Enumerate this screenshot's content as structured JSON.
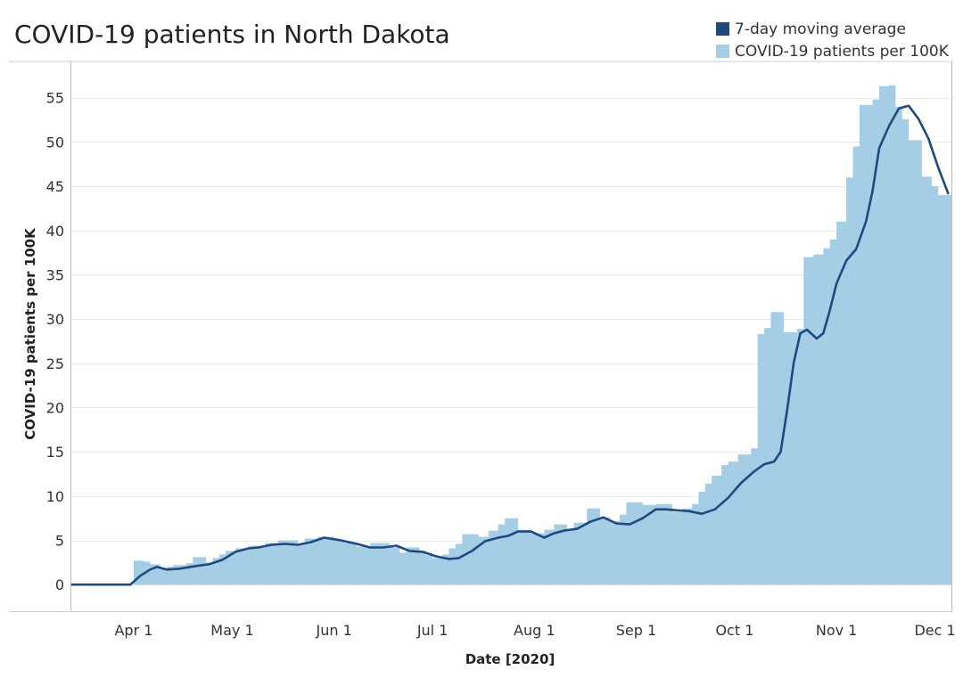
{
  "chart_data": {
    "type": "area",
    "title": "COVID-19 patients in North Dakota",
    "xlabel": "Date [2020]",
    "ylabel": "COVID-19 patients per 100K",
    "x_range": [
      "2020-03-13",
      "2020-12-06"
    ],
    "ylim": [
      -3,
      59
    ],
    "yticks": [
      0,
      5,
      10,
      15,
      20,
      25,
      30,
      35,
      40,
      45,
      50,
      55
    ],
    "xticks": [
      {
        "label": "Apr 1",
        "date": "2020-04-01"
      },
      {
        "label": "May 1",
        "date": "2020-05-01"
      },
      {
        "label": "Jun 1",
        "date": "2020-06-01"
      },
      {
        "label": "Jul 1",
        "date": "2020-07-01"
      },
      {
        "label": "Aug 1",
        "date": "2020-08-01"
      },
      {
        "label": "Sep 1",
        "date": "2020-09-01"
      },
      {
        "label": "Oct 1",
        "date": "2020-10-01"
      },
      {
        "label": "Nov 1",
        "date": "2020-11-01"
      },
      {
        "label": "Dec 1",
        "date": "2020-12-01"
      }
    ],
    "grid": true,
    "legend_position": "top-right",
    "series": [
      {
        "name": "COVID-19 patients per 100K",
        "style": "step-area",
        "color": "#a6cde6",
        "points": [
          [
            "2020-03-13",
            0
          ],
          [
            "2020-03-31",
            0
          ],
          [
            "2020-04-01",
            2.7
          ],
          [
            "2020-04-04",
            2.6
          ],
          [
            "2020-04-06",
            2.3
          ],
          [
            "2020-04-09",
            1.8
          ],
          [
            "2020-04-11",
            2.0
          ],
          [
            "2020-04-13",
            2.2
          ],
          [
            "2020-04-17",
            2.4
          ],
          [
            "2020-04-19",
            3.1
          ],
          [
            "2020-04-23",
            2.5
          ],
          [
            "2020-04-25",
            3.0
          ],
          [
            "2020-04-27",
            3.4
          ],
          [
            "2020-04-29",
            3.8
          ],
          [
            "2020-05-02",
            4.1
          ],
          [
            "2020-05-06",
            4.4
          ],
          [
            "2020-05-11",
            4.7
          ],
          [
            "2020-05-15",
            5.0
          ],
          [
            "2020-05-21",
            4.6
          ],
          [
            "2020-05-23",
            5.2
          ],
          [
            "2020-05-27",
            5.4
          ],
          [
            "2020-06-01",
            5.1
          ],
          [
            "2020-06-04",
            4.7
          ],
          [
            "2020-06-08",
            4.3
          ],
          [
            "2020-06-12",
            4.7
          ],
          [
            "2020-06-18",
            4.2
          ],
          [
            "2020-06-21",
            3.6
          ],
          [
            "2020-06-23",
            4.2
          ],
          [
            "2020-06-27",
            3.8
          ],
          [
            "2020-06-29",
            3.3
          ],
          [
            "2020-07-01",
            3.0
          ],
          [
            "2020-07-04",
            3.4
          ],
          [
            "2020-07-06",
            4.1
          ],
          [
            "2020-07-08",
            4.6
          ],
          [
            "2020-07-10",
            5.7
          ],
          [
            "2020-07-15",
            5.4
          ],
          [
            "2020-07-18",
            6.1
          ],
          [
            "2020-07-21",
            6.8
          ],
          [
            "2020-07-23",
            7.5
          ],
          [
            "2020-07-27",
            6.2
          ],
          [
            "2020-07-31",
            5.8
          ],
          [
            "2020-08-04",
            6.2
          ],
          [
            "2020-08-07",
            6.8
          ],
          [
            "2020-08-11",
            6.3
          ],
          [
            "2020-08-13",
            7.0
          ],
          [
            "2020-08-17",
            8.6
          ],
          [
            "2020-08-21",
            7.6
          ],
          [
            "2020-08-24",
            7.2
          ],
          [
            "2020-08-27",
            7.9
          ],
          [
            "2020-08-29",
            9.3
          ],
          [
            "2020-09-03",
            9.0
          ],
          [
            "2020-09-07",
            9.1
          ],
          [
            "2020-09-12",
            8.2
          ],
          [
            "2020-09-15",
            8.6
          ],
          [
            "2020-09-18",
            9.1
          ],
          [
            "2020-09-20",
            10.5
          ],
          [
            "2020-09-22",
            11.4
          ],
          [
            "2020-09-24",
            12.3
          ],
          [
            "2020-09-27",
            13.5
          ],
          [
            "2020-09-29",
            13.9
          ],
          [
            "2020-10-02",
            14.7
          ],
          [
            "2020-10-06",
            15.4
          ],
          [
            "2020-10-08",
            28.3
          ],
          [
            "2020-10-10",
            29.0
          ],
          [
            "2020-10-12",
            30.8
          ],
          [
            "2020-10-16",
            28.5
          ],
          [
            "2020-10-20",
            28.9
          ],
          [
            "2020-10-22",
            37.0
          ],
          [
            "2020-10-25",
            37.3
          ],
          [
            "2020-10-28",
            38.0
          ],
          [
            "2020-10-30",
            39.0
          ],
          [
            "2020-11-01",
            41.0
          ],
          [
            "2020-11-04",
            46.0
          ],
          [
            "2020-11-06",
            49.5
          ],
          [
            "2020-11-08",
            54.2
          ],
          [
            "2020-11-12",
            54.8
          ],
          [
            "2020-11-14",
            56.3
          ],
          [
            "2020-11-17",
            56.4
          ],
          [
            "2020-11-19",
            54.0
          ],
          [
            "2020-11-21",
            52.6
          ],
          [
            "2020-11-23",
            50.2
          ],
          [
            "2020-11-27",
            46.1
          ],
          [
            "2020-11-30",
            45.0
          ],
          [
            "2020-12-02",
            44.0
          ],
          [
            "2020-12-06",
            43.5
          ]
        ]
      },
      {
        "name": "7-day moving average",
        "style": "line",
        "color": "#1f4a7d",
        "points": [
          [
            "2020-03-13",
            0
          ],
          [
            "2020-03-31",
            0
          ],
          [
            "2020-04-03",
            1.0
          ],
          [
            "2020-04-06",
            1.7
          ],
          [
            "2020-04-08",
            2.0
          ],
          [
            "2020-04-11",
            1.7
          ],
          [
            "2020-04-15",
            1.8
          ],
          [
            "2020-04-20",
            2.1
          ],
          [
            "2020-04-24",
            2.3
          ],
          [
            "2020-04-28",
            2.8
          ],
          [
            "2020-05-02",
            3.7
          ],
          [
            "2020-05-06",
            4.1
          ],
          [
            "2020-05-09",
            4.2
          ],
          [
            "2020-05-13",
            4.5
          ],
          [
            "2020-05-17",
            4.6
          ],
          [
            "2020-05-21",
            4.5
          ],
          [
            "2020-05-25",
            4.8
          ],
          [
            "2020-05-29",
            5.3
          ],
          [
            "2020-06-03",
            5.0
          ],
          [
            "2020-06-08",
            4.6
          ],
          [
            "2020-06-12",
            4.2
          ],
          [
            "2020-06-16",
            4.2
          ],
          [
            "2020-06-20",
            4.4
          ],
          [
            "2020-06-24",
            3.8
          ],
          [
            "2020-06-28",
            3.7
          ],
          [
            "2020-07-02",
            3.2
          ],
          [
            "2020-07-06",
            2.9
          ],
          [
            "2020-07-09",
            3.0
          ],
          [
            "2020-07-13",
            3.8
          ],
          [
            "2020-07-17",
            4.9
          ],
          [
            "2020-07-21",
            5.3
          ],
          [
            "2020-07-24",
            5.5
          ],
          [
            "2020-07-27",
            6.0
          ],
          [
            "2020-07-31",
            6.0
          ],
          [
            "2020-08-04",
            5.3
          ],
          [
            "2020-08-07",
            5.8
          ],
          [
            "2020-08-10",
            6.1
          ],
          [
            "2020-08-14",
            6.3
          ],
          [
            "2020-08-18",
            7.1
          ],
          [
            "2020-08-22",
            7.6
          ],
          [
            "2020-08-26",
            6.9
          ],
          [
            "2020-08-30",
            6.8
          ],
          [
            "2020-09-03",
            7.5
          ],
          [
            "2020-09-07",
            8.5
          ],
          [
            "2020-09-10",
            8.5
          ],
          [
            "2020-09-13",
            8.4
          ],
          [
            "2020-09-17",
            8.3
          ],
          [
            "2020-09-21",
            8.0
          ],
          [
            "2020-09-25",
            8.5
          ],
          [
            "2020-09-29",
            9.8
          ],
          [
            "2020-10-03",
            11.5
          ],
          [
            "2020-10-07",
            12.8
          ],
          [
            "2020-10-10",
            13.6
          ],
          [
            "2020-10-13",
            13.9
          ],
          [
            "2020-10-15",
            15.0
          ],
          [
            "2020-10-17",
            19.8
          ],
          [
            "2020-10-19",
            25.1
          ],
          [
            "2020-10-21",
            28.4
          ],
          [
            "2020-10-23",
            28.8
          ],
          [
            "2020-10-26",
            27.8
          ],
          [
            "2020-10-28",
            28.4
          ],
          [
            "2020-10-30",
            31.0
          ],
          [
            "2020-11-01",
            34.0
          ],
          [
            "2020-11-04",
            36.6
          ],
          [
            "2020-11-07",
            37.9
          ],
          [
            "2020-11-10",
            41.0
          ],
          [
            "2020-11-12",
            44.5
          ],
          [
            "2020-11-14",
            49.3
          ],
          [
            "2020-11-17",
            51.8
          ],
          [
            "2020-11-20",
            53.8
          ],
          [
            "2020-11-23",
            54.1
          ],
          [
            "2020-11-26",
            52.6
          ],
          [
            "2020-11-29",
            50.4
          ],
          [
            "2020-12-02",
            47.1
          ],
          [
            "2020-12-05",
            44.2
          ]
        ]
      }
    ]
  }
}
